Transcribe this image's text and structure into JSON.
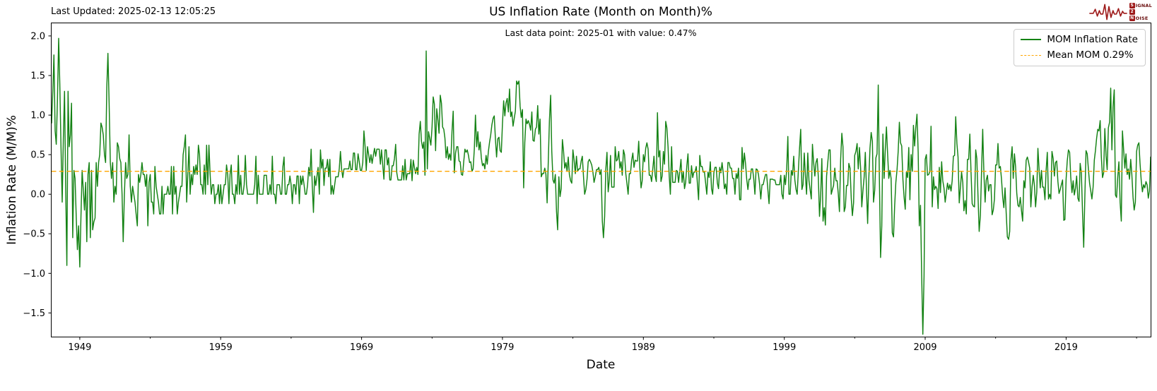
{
  "header": {
    "last_updated": "Last Updated: 2025-02-13 12:05:25",
    "logo": {
      "name": "signal-2-noise",
      "color": "#9e1b1b",
      "row1_boxed": "S",
      "row1_rest": "IGNAL",
      "row2_boxed": "2",
      "row3_boxed": "N",
      "row3_rest": "OISE"
    }
  },
  "chart_data": {
    "type": "line",
    "title": "US Inflation Rate (Month on Month)%",
    "annotation": "Last data point: 2025-01 with value: 0.47%",
    "xlabel": "Date",
    "ylabel": "Inflation Rate (M/M)%",
    "x_frequency": "monthly",
    "x_start": "1947-01",
    "x_end": "2025-01",
    "xlim": [
      1947.0,
      2025.0
    ],
    "ylim": [
      -1.8,
      2.16
    ],
    "grid": false,
    "xticks": {
      "years": [
        1949,
        1959,
        1969,
        1979,
        1989,
        1999,
        2009,
        2019
      ],
      "labels": [
        "1949",
        "1959",
        "1969",
        "1979",
        "1989",
        "1999",
        "2009",
        "2019"
      ]
    },
    "xticks_minor_years": [
      1954,
      1964,
      1974,
      1984,
      1994,
      2004,
      2014,
      2024
    ],
    "yticks": {
      "values": [
        2.0,
        1.5,
        1.0,
        0.5,
        0.0,
        -0.5,
        -1.0,
        -1.5
      ],
      "labels": [
        "2.0",
        "1.5",
        "1.0",
        "0.5",
        "0.0",
        "−0.5",
        "−1.0",
        "−1.5"
      ]
    },
    "legend": {
      "position": "upper right",
      "entries": [
        {
          "label": "MOM Inflation Rate",
          "color": "#148214",
          "style": "solid"
        },
        {
          "label": "Mean MOM 0.29%",
          "color": "#ffa500",
          "style": "dashed"
        }
      ]
    },
    "mean_line": {
      "value": 0.29,
      "color": "#ffa500",
      "style": "dashed"
    },
    "last_point": {
      "date": "2025-01",
      "value": 0.47
    },
    "series": [
      {
        "name": "MOM Inflation Rate",
        "color": "#148214",
        "start": "1947-01",
        "values": [
          0.9,
          1.3,
          1.76,
          0.8,
          0.63,
          1.2,
          1.97,
          1.4,
          0.6,
          -0.1,
          0.7,
          1.3,
          0.1,
          -0.9,
          1.3,
          0.6,
          0.75,
          1.15,
          -0.55,
          0.3,
          0.2,
          -0.3,
          -0.7,
          -0.4,
          -0.92,
          -0.3,
          0.3,
          0.05,
          -0.2,
          0.15,
          -0.6,
          0.25,
          0.4,
          -0.55,
          0.3,
          -0.45,
          -0.35,
          -0.3,
          0.4,
          0.1,
          0.4,
          0.5,
          0.9,
          0.85,
          0.75,
          0.5,
          0.4,
          1.35,
          1.78,
          1.15,
          0.4,
          0.2,
          0.4,
          -0.1,
          0.1,
          0.0,
          0.65,
          0.6,
          0.45,
          0.4,
          0.0,
          -0.6,
          0.0,
          0.4,
          0.2,
          0.25,
          0.75,
          0.1,
          -0.1,
          0.1,
          0.0,
          -0.1,
          -0.25,
          -0.4,
          0.25,
          0.15,
          0.25,
          0.4,
          0.25,
          0.25,
          0.1,
          0.25,
          -0.4,
          0.15,
          0.25,
          -0.1,
          -0.1,
          -0.25,
          0.35,
          0.1,
          0.0,
          -0.1,
          -0.25,
          -0.25,
          0.1,
          -0.25,
          0.0,
          0.0,
          0.0,
          0.1,
          0.0,
          0.0,
          0.35,
          -0.25,
          0.35,
          0.0,
          0.1,
          -0.25,
          -0.1,
          0.0,
          0.1,
          0.1,
          0.5,
          0.6,
          0.75,
          -0.1,
          0.25,
          0.6,
          0.0,
          0.25,
          0.12,
          0.35,
          0.25,
          0.37,
          0.25,
          0.62,
          0.5,
          0.12,
          0.12,
          0.0,
          0.37,
          0.0,
          0.62,
          0.12,
          0.62,
          0.25,
          0.0,
          0.12,
          0.12,
          -0.12,
          0.0,
          0.0,
          0.12,
          -0.12,
          0.12,
          -0.12,
          0.0,
          0.12,
          0.12,
          0.37,
          0.25,
          -0.12,
          0.25,
          0.37,
          0.0,
          0.0,
          -0.12,
          0.12,
          0.0,
          0.49,
          0.0,
          0.24,
          0.0,
          0.0,
          0.12,
          0.49,
          0.12,
          0.0,
          0.0,
          0.0,
          0.0,
          0.0,
          0.0,
          0.12,
          0.48,
          -0.12,
          0.24,
          0.0,
          0.0,
          0.0,
          0.0,
          0.24,
          0.24,
          0.24,
          0.0,
          0.0,
          0.12,
          0.0,
          0.48,
          0.0,
          0.0,
          -0.12,
          0.12,
          0.12,
          0.12,
          0.0,
          0.0,
          0.35,
          0.47,
          0.0,
          0.0,
          0.12,
          0.12,
          0.23,
          0.12,
          -0.12,
          0.12,
          0.12,
          0.0,
          0.23,
          0.23,
          -0.12,
          0.23,
          0.12,
          0.23,
          0.12,
          0.0,
          0.0,
          0.12,
          0.34,
          0.23,
          0.57,
          0.11,
          -0.23,
          0.23,
          0.11,
          0.23,
          0.34,
          0.0,
          0.56,
          0.33,
          0.44,
          0.11,
          0.33,
          0.33,
          0.44,
          0.22,
          0.44,
          0.0,
          0.11,
          0.0,
          0.11,
          0.22,
          0.22,
          0.22,
          0.32,
          0.54,
          0.32,
          0.21,
          0.32,
          0.32,
          0.32,
          0.32,
          0.32,
          0.42,
          0.31,
          0.31,
          0.52,
          0.52,
          0.31,
          0.31,
          0.51,
          0.41,
          0.3,
          0.3,
          0.4,
          0.8,
          0.6,
          0.3,
          0.6,
          0.5,
          0.4,
          0.5,
          0.39,
          0.49,
          0.58,
          0.48,
          0.57,
          0.57,
          0.57,
          0.38,
          0.56,
          0.37,
          0.19,
          0.56,
          0.56,
          0.37,
          0.46,
          0.18,
          0.18,
          0.36,
          0.36,
          0.45,
          0.63,
          0.27,
          0.18,
          0.18,
          0.18,
          0.18,
          0.36,
          0.18,
          0.44,
          0.18,
          0.26,
          0.26,
          0.26,
          0.44,
          0.17,
          0.43,
          0.34,
          0.26,
          0.34,
          0.25,
          0.76,
          0.92,
          0.67,
          0.58,
          0.66,
          0.24,
          1.81,
          0.32,
          0.79,
          0.71,
          0.62,
          0.85,
          1.23,
          1.14,
          0.55,
          1.08,
          0.94,
          0.77,
          1.25,
          1.15,
          0.85,
          0.82,
          0.71,
          0.46,
          0.6,
          0.44,
          0.51,
          0.43,
          0.79,
          1.05,
          0.27,
          0.52,
          0.6,
          0.6,
          0.42,
          0.41,
          0.25,
          0.24,
          0.41,
          0.57,
          0.53,
          0.56,
          0.49,
          0.4,
          0.41,
          0.29,
          0.32,
          0.57,
          1.0,
          0.6,
          0.79,
          0.56,
          0.66,
          0.46,
          0.36,
          0.39,
          0.32,
          0.49,
          0.38,
          0.54,
          0.66,
          0.75,
          0.88,
          0.96,
          0.99,
          0.69,
          0.47,
          0.7,
          0.72,
          0.55,
          0.53,
          0.89,
          1.18,
          0.99,
          1.15,
          1.21,
          1.04,
          1.33,
          0.98,
          1.04,
          0.86,
          0.96,
          1.05,
          1.43,
          1.39,
          1.43,
          1.11,
          0.97,
          1.07,
          0.08,
          0.65,
          0.95,
          0.89,
          0.93,
          0.88,
          0.81,
          1.04,
          0.68,
          0.67,
          0.82,
          0.85,
          1.12,
          0.76,
          0.95,
          0.22,
          0.26,
          0.26,
          0.33,
          0.25,
          -0.11,
          0.4,
          0.94,
          1.25,
          0.54,
          0.18,
          0.14,
          0.25,
          -0.22,
          -0.45,
          0.22,
          -0.03,
          0.07,
          0.69,
          0.55,
          0.33,
          0.4,
          0.29,
          0.47,
          0.25,
          0.17,
          0.14,
          0.56,
          0.43,
          0.26,
          0.48,
          0.29,
          0.32,
          0.32,
          0.42,
          0.48,
          0.22,
          0.0,
          0.06,
          0.19,
          0.41,
          0.44,
          0.41,
          0.37,
          0.28,
          0.15,
          0.22,
          0.31,
          0.31,
          0.34,
          0.25,
          0.31,
          -0.34,
          -0.55,
          -0.28,
          0.31,
          0.53,
          0.03,
          0.18,
          0.49,
          0.09,
          0.09,
          0.09,
          0.6,
          0.42,
          0.44,
          0.54,
          0.33,
          0.41,
          0.24,
          0.56,
          0.5,
          0.26,
          0.14,
          0.0,
          0.26,
          0.26,
          0.43,
          0.52,
          0.34,
          0.43,
          0.42,
          0.42,
          0.67,
          0.33,
          0.08,
          0.17,
          0.5,
          0.41,
          0.58,
          0.65,
          0.57,
          0.24,
          0.24,
          0.16,
          0.32,
          0.48,
          0.24,
          0.16,
          1.03,
          0.47,
          0.55,
          0.16,
          0.23,
          0.54,
          0.38,
          0.92,
          0.84,
          0.6,
          0.22,
          0.0,
          0.6,
          0.15,
          0.15,
          0.15,
          0.3,
          0.29,
          0.15,
          0.29,
          0.44,
          0.15,
          0.29,
          0.07,
          0.15,
          0.36,
          0.51,
          0.14,
          0.14,
          0.36,
          0.21,
          0.28,
          0.28,
          0.35,
          0.14,
          -0.07,
          0.49,
          0.35,
          0.35,
          0.28,
          0.28,
          0.14,
          0.0,
          0.28,
          0.21,
          0.41,
          0.07,
          0.0,
          0.27,
          0.34,
          0.34,
          0.14,
          0.07,
          0.34,
          0.27,
          0.4,
          0.27,
          0.07,
          0.13,
          0.0,
          0.4,
          0.4,
          0.33,
          0.33,
          0.2,
          0.2,
          0.0,
          0.26,
          0.2,
          0.33,
          -0.07,
          -0.07,
          0.59,
          0.32,
          0.52,
          0.39,
          0.19,
          0.06,
          0.19,
          0.19,
          0.32,
          0.32,
          0.19,
          0.0,
          0.32,
          0.31,
          0.25,
          0.12,
          -0.06,
          0.12,
          0.12,
          0.19,
          0.25,
          0.25,
          0.06,
          -0.12,
          0.19,
          0.19,
          0.19,
          0.18,
          0.18,
          0.12,
          0.12,
          0.12,
          0.12,
          0.24,
          0.0,
          -0.06,
          0.24,
          0.12,
          0.3,
          0.73,
          0.0,
          0.0,
          0.3,
          0.24,
          0.48,
          0.18,
          0.06,
          0.0,
          0.3,
          0.59,
          0.82,
          0.06,
          0.12,
          0.52,
          0.23,
          0.0,
          0.52,
          0.17,
          0.06,
          -0.06,
          0.63,
          0.4,
          0.23,
          0.4,
          0.45,
          0.22,
          -0.28,
          0.0,
          0.45,
          -0.34,
          -0.17,
          -0.39,
          0.23,
          0.39,
          0.56,
          0.56,
          0.0,
          0.06,
          0.11,
          0.33,
          0.17,
          0.17,
          0.0,
          -0.22,
          0.44,
          0.77,
          0.6,
          -0.22,
          -0.16,
          0.11,
          0.11,
          0.39,
          0.33,
          -0.05,
          -0.27,
          -0.11,
          0.49,
          0.54,
          0.64,
          0.32,
          0.59,
          0.32,
          -0.16,
          0.05,
          0.21,
          0.53,
          0.05,
          -0.37,
          0.21,
          0.58,
          0.78,
          0.67,
          -0.1,
          0.05,
          0.46,
          0.51,
          1.38,
          0.2,
          -0.8,
          -0.4,
          0.76,
          0.2,
          0.55,
          0.85,
          0.5,
          0.2,
          0.3,
          0.2,
          -0.49,
          -0.54,
          -0.15,
          0.15,
          0.31,
          0.54,
          0.91,
          0.65,
          0.61,
          0.19,
          -0.03,
          -0.19,
          0.28,
          0.21,
          0.59,
          -0.07,
          0.5,
          0.29,
          0.87,
          0.61,
          0.84,
          1.01,
          0.53,
          -0.4,
          -0.14,
          -1.01,
          -1.77,
          -1.03,
          0.44,
          0.5,
          0.24,
          0.25,
          0.29,
          0.86,
          -0.16,
          0.22,
          0.06,
          0.1,
          0.07,
          -0.18,
          0.34,
          0.02,
          0.41,
          0.17,
          0.08,
          -0.1,
          0.02,
          0.14,
          0.06,
          0.12,
          0.04,
          0.17,
          0.48,
          0.49,
          0.98,
          0.64,
          0.47,
          -0.11,
          0.09,
          0.28,
          0.15,
          -0.21,
          -0.08,
          -0.25,
          0.44,
          0.44,
          0.76,
          0.3,
          -0.12,
          -0.15,
          -0.16,
          0.56,
          0.45,
          -0.04,
          -0.47,
          -0.27,
          0.3,
          0.82,
          0.26,
          -0.1,
          0.18,
          0.24,
          0.04,
          0.12,
          0.12,
          -0.26,
          -0.2,
          -0.06,
          0.37,
          0.37,
          0.64,
          0.33,
          0.35,
          0.19,
          -0.04,
          -0.17,
          0.08,
          -0.25,
          -0.54,
          -0.57,
          -0.47,
          0.43,
          0.6,
          0.2,
          0.51,
          0.35,
          0.01,
          -0.14,
          -0.16,
          -0.04,
          -0.21,
          -0.34,
          0.17,
          0.08,
          0.43,
          0.47,
          0.41,
          0.33,
          -0.16,
          0.09,
          0.24,
          0.12,
          -0.16,
          0.03,
          0.58,
          0.31,
          0.08,
          0.3,
          0.09,
          0.09,
          -0.07,
          0.3,
          0.53,
          -0.06,
          0.0,
          -0.06,
          0.54,
          0.45,
          0.23,
          0.4,
          0.42,
          0.16,
          0.01,
          0.06,
          0.12,
          0.18,
          -0.33,
          -0.32,
          0.19,
          0.42,
          0.56,
          0.53,
          0.21,
          0.02,
          0.17,
          -0.01,
          0.08,
          0.23,
          -0.05,
          -0.09,
          0.39,
          0.27,
          -0.22,
          -0.67,
          0.0,
          0.55,
          0.51,
          0.32,
          0.14,
          0.04,
          -0.06,
          0.09,
          0.43,
          0.55,
          0.71,
          0.82,
          0.8,
          0.93,
          0.48,
          0.21,
          0.27,
          0.83,
          0.49,
          0.31,
          0.84,
          0.91,
          1.34,
          0.56,
          1.1,
          1.32,
          -0.01,
          -0.04,
          0.22,
          0.41,
          -0.1,
          -0.34,
          0.8,
          0.56,
          0.33,
          0.51,
          0.25,
          0.32,
          0.19,
          0.44,
          0.25,
          -0.04,
          -0.2,
          -0.1,
          0.54,
          0.62,
          0.65,
          0.39,
          0.17,
          0.03,
          0.12,
          0.08,
          0.16,
          0.12,
          -0.05,
          0.04,
          0.47
        ]
      }
    ]
  }
}
